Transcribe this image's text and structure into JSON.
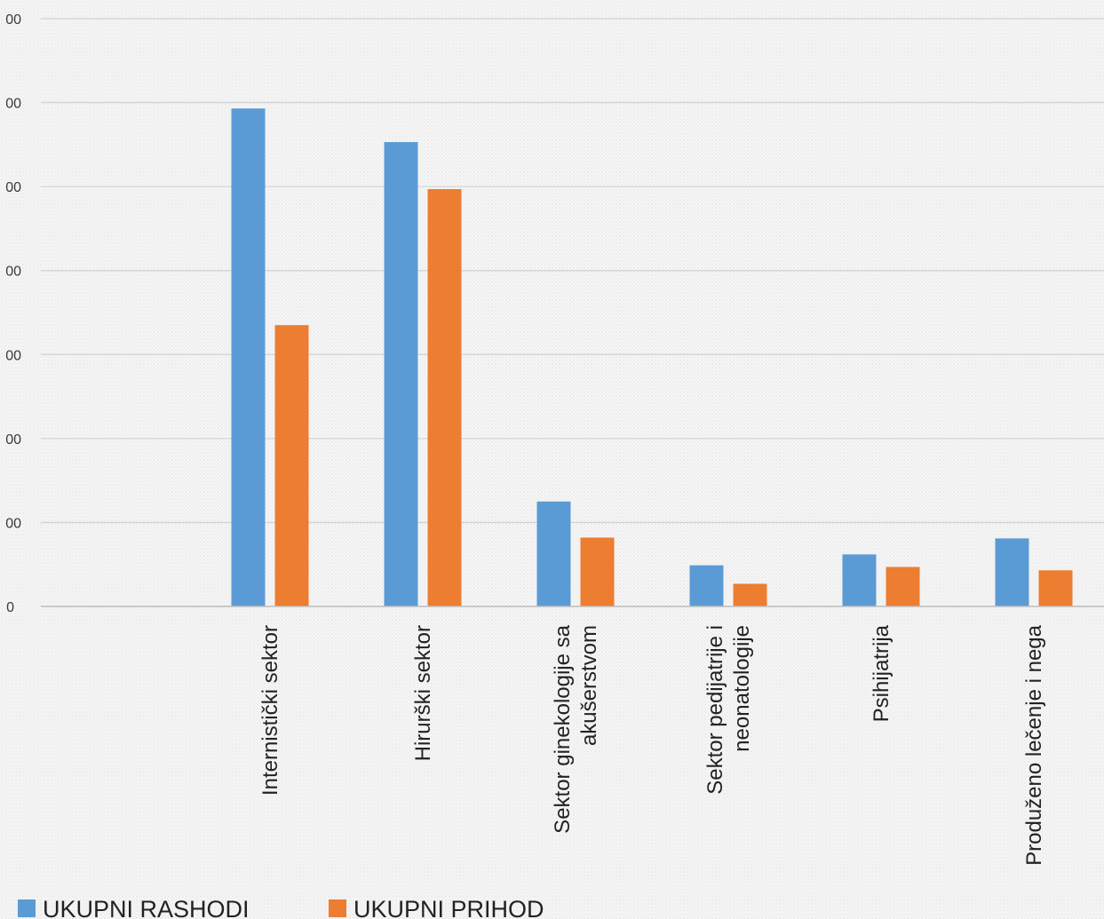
{
  "chart_data": {
    "type": "bar",
    "title": "",
    "xlabel": "",
    "ylabel": "",
    "categories": [
      [
        "Internistički sektor"
      ],
      [
        "Hirurški sektor"
      ],
      [
        "Sektor ginekologije sa",
        "akušerstvom"
      ],
      [
        "Sektor pedijatrije i",
        "neonatologije"
      ],
      [
        "Psihijatrija"
      ],
      [
        "Produženo lečenje i nega"
      ]
    ],
    "series": [
      {
        "name": "UKUPNI RASHODI",
        "color": "#5b9bd5",
        "values": [
          5930,
          5530,
          1250,
          490,
          620,
          810
        ]
      },
      {
        "name": "UKUPNI PRIHOD",
        "color": "#ed7d31",
        "values": [
          3350,
          4970,
          820,
          270,
          470,
          430
        ]
      }
    ],
    "ylim": [
      0,
      7000
    ],
    "y_ticks": [
      "0",
      "00",
      "00",
      "00",
      "00",
      "00",
      "00",
      "00"
    ],
    "gridlines": true,
    "legend_position": "bottom-left"
  }
}
